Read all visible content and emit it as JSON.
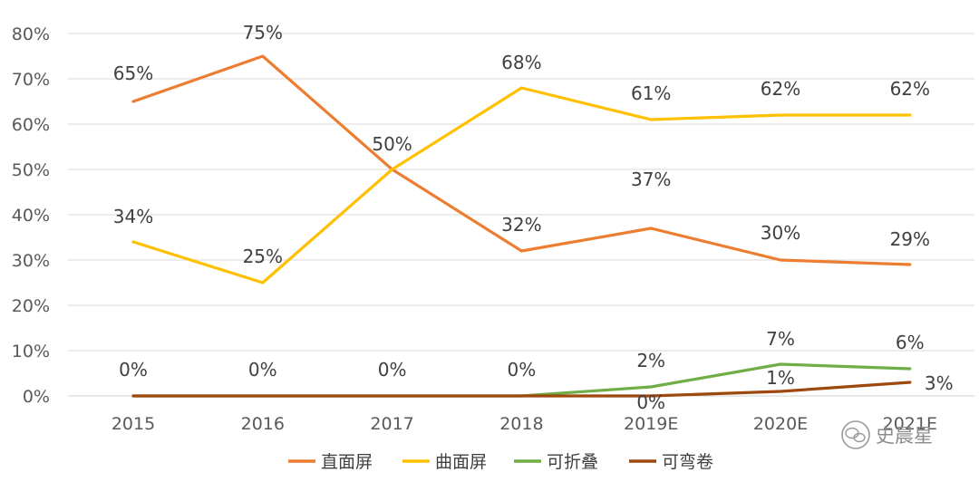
{
  "chart_data": {
    "type": "line",
    "title": "",
    "xlabel": "",
    "ylabel": "",
    "categories": [
      "2015",
      "2016",
      "2017",
      "2018",
      "2019E",
      "2020E",
      "2021E"
    ],
    "ylim": [
      0,
      80
    ],
    "y_ticks": [
      "0%",
      "10%",
      "20%",
      "30%",
      "40%",
      "50%",
      "60%",
      "70%",
      "80%"
    ],
    "grid": true,
    "legend_position": "bottom",
    "series": [
      {
        "name": "直面屏",
        "color": "#ED7D31",
        "values": [
          65,
          75,
          50,
          32,
          37,
          30,
          29
        ],
        "labels": [
          "65%",
          "75%",
          "50%",
          "32%",
          "37%",
          "30%",
          "29%"
        ]
      },
      {
        "name": "曲面屏",
        "color": "#FFC000",
        "values": [
          34,
          25,
          50,
          68,
          61,
          62,
          62
        ],
        "labels": [
          "34%",
          "25%",
          "",
          "68%",
          "61%",
          "62%",
          "62%"
        ]
      },
      {
        "name": "可折叠",
        "color": "#70AD47",
        "values": [
          0,
          0,
          0,
          0,
          2,
          7,
          6
        ],
        "labels": [
          "0%",
          "0%",
          "0%",
          "0%",
          "2%",
          "7%",
          "6%"
        ]
      },
      {
        "name": "可弯卷",
        "color": "#9E480E",
        "values": [
          0,
          0,
          0,
          0,
          0,
          1,
          3
        ],
        "labels": [
          "",
          "",
          "",
          "",
          "0%",
          "1%",
          "3%"
        ]
      }
    ]
  },
  "watermark": {
    "text": "史晨星",
    "icon": "wechat-icon"
  }
}
